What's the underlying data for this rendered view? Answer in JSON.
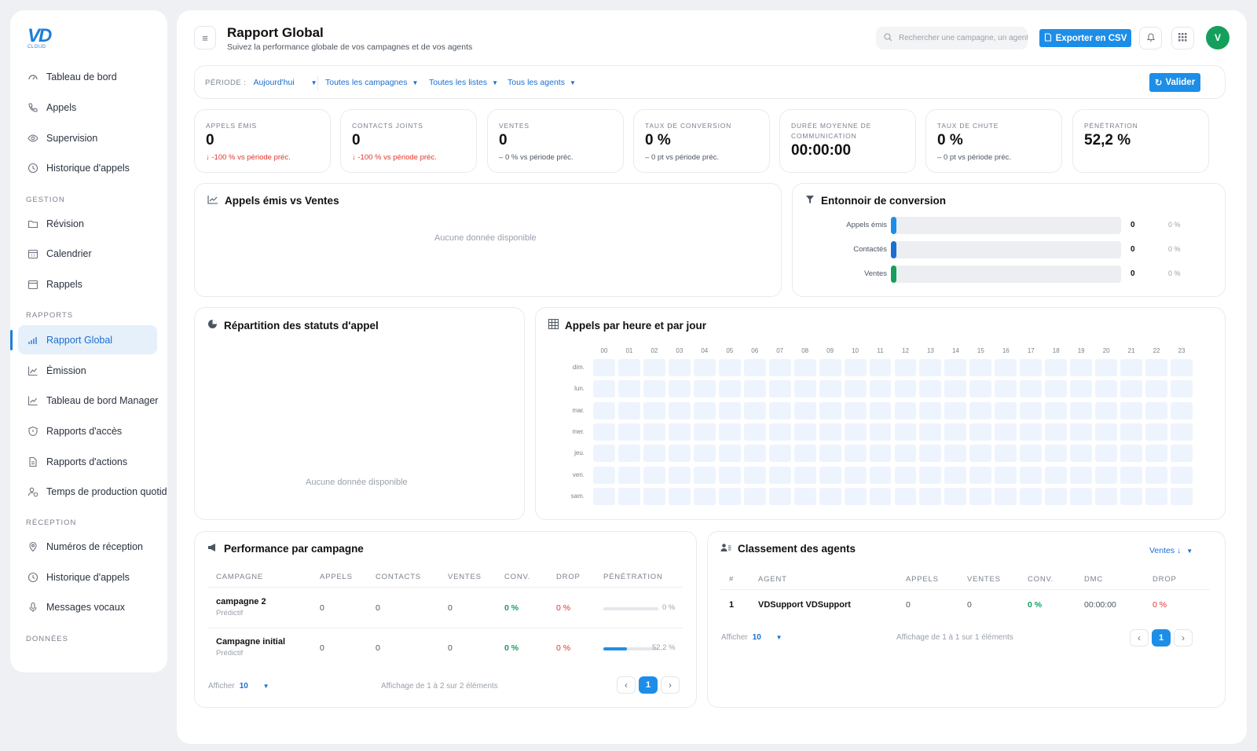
{
  "brand": {
    "mark": "VD",
    "sub": "CLOUD"
  },
  "sidebar": {
    "items_top": [
      {
        "label": "Tableau de bord",
        "icon": "dashboard-icon"
      },
      {
        "label": "Appels",
        "icon": "phone-icon"
      },
      {
        "label": "Supervision",
        "icon": "eye-icon"
      },
      {
        "label": "Historique d'appels",
        "icon": "history-icon"
      }
    ],
    "section_gestion": "GESTION",
    "items_gestion": [
      {
        "label": "Révision",
        "icon": "folder-icon"
      },
      {
        "label": "Calendrier",
        "icon": "calendar-icon"
      },
      {
        "label": "Rappels",
        "icon": "callback-icon"
      }
    ],
    "section_rapports": "RAPPORTS",
    "items_rapports": [
      {
        "label": "Rapport Global",
        "icon": "bar-chart-icon"
      },
      {
        "label": "Émission",
        "icon": "line-chart-icon"
      },
      {
        "label": "Tableau de bord Manager",
        "icon": "trend-icon"
      },
      {
        "label": "Rapports d'accès",
        "icon": "shield-icon"
      },
      {
        "label": "Rapports d'actions",
        "icon": "document-icon"
      },
      {
        "label": "Temps de production quotidien",
        "icon": "user-clock-icon"
      }
    ],
    "section_reception": "RÉCEPTION",
    "items_reception": [
      {
        "label": "Numéros de réception",
        "icon": "pin-icon"
      },
      {
        "label": "Historique d'appels",
        "icon": "history-icon"
      },
      {
        "label": "Messages vocaux",
        "icon": "mic-icon"
      }
    ],
    "section_donnees": "DONNÉES"
  },
  "header": {
    "title": "Rapport Global",
    "subtitle": "Suivez la performance globale de vos campagnes et de vos agents",
    "search_placeholder": "Rechercher une campagne, un agent...",
    "export_label": "Exporter en CSV",
    "avatar_initial": "V"
  },
  "filters": {
    "period_label": "PÉRIODE :",
    "period_value": "Aujourd'hui",
    "campaigns": "Toutes les campagnes",
    "lists": "Toutes les listes",
    "agents": "Tous les agents",
    "validate_label": "Valider"
  },
  "kpis": [
    {
      "label": "APPELS ÉMIS",
      "value": "0",
      "delta": "-100 % vs période préc.",
      "delta_arrow": "↓",
      "tone": "red"
    },
    {
      "label": "CONTACTS JOINTS",
      "value": "0",
      "delta": "-100 % vs période préc.",
      "delta_arrow": "↓",
      "tone": "red"
    },
    {
      "label": "VENTES",
      "value": "0",
      "delta": "0 % vs période préc.",
      "delta_arrow": "–",
      "tone": "gray"
    },
    {
      "label": "TAUX DE CONVERSION",
      "value": "0 %",
      "delta": "0 pt vs période préc.",
      "delta_arrow": "–",
      "tone": "gray"
    },
    {
      "label": "DURÉE MOYENNE DE COMMUNICATION",
      "value": "00:00:00",
      "delta": "",
      "delta_arrow": "",
      "tone": "gray"
    },
    {
      "label": "TAUX DE CHUTE",
      "value": "0 %",
      "delta": "0 pt vs période préc.",
      "delta_arrow": "–",
      "tone": "gray"
    },
    {
      "label": "PÉNÉTRATION",
      "value": "52,2 %",
      "delta": "",
      "delta_arrow": "",
      "tone": "gray"
    }
  ],
  "calls_vs_sales": {
    "title": "Appels émis vs Ventes",
    "empty": "Aucune donnée disponible"
  },
  "funnel": {
    "title": "Entonnoir de conversion",
    "rows": [
      {
        "label": "Appels émis",
        "value": "0",
        "pct": "0 %",
        "color": "#1d8ee8"
      },
      {
        "label": "Contactés",
        "value": "0",
        "pct": "0 %",
        "color": "#1a6fd0"
      },
      {
        "label": "Ventes",
        "value": "0",
        "pct": "0 %",
        "color": "#14a05c"
      }
    ]
  },
  "status_split": {
    "title": "Répartition des statuts d'appel",
    "empty": "Aucune donnée disponible"
  },
  "heatmap": {
    "title": "Appels par heure et par jour",
    "hours": [
      "00",
      "01",
      "02",
      "03",
      "04",
      "05",
      "06",
      "07",
      "08",
      "09",
      "10",
      "11",
      "12",
      "13",
      "14",
      "15",
      "16",
      "17",
      "18",
      "19",
      "20",
      "21",
      "22",
      "23"
    ],
    "days": [
      "dim.",
      "lun.",
      "mar.",
      "mer.",
      "jeu.",
      "ven.",
      "sam."
    ]
  },
  "campaign_perf": {
    "title": "Performance par campagne",
    "columns": [
      "CAMPAGNE",
      "APPELS",
      "CONTACTS",
      "VENTES",
      "CONV.",
      "DROP",
      "PÉNÉTRATION"
    ],
    "rows": [
      {
        "name": "campagne 2",
        "type": "Prédictif",
        "calls": "0",
        "contacts": "0",
        "sales": "0",
        "conv": "0 %",
        "drop": "0 %",
        "penetration": "0 %",
        "penetration_value": 0
      },
      {
        "name": "Campagne initial",
        "type": "Prédictif",
        "calls": "0",
        "contacts": "0",
        "sales": "0",
        "conv": "0 %",
        "drop": "0 %",
        "penetration": "52,2 %",
        "penetration_value": 52.2
      }
    ],
    "show_label": "Afficher",
    "show_value": "10",
    "summary": "Affichage de 1 à 2 sur 2 éléments",
    "page": "1"
  },
  "agents_rank": {
    "title": "Classement des agents",
    "sort_label": "Ventes ↓",
    "columns": [
      "#",
      "AGENT",
      "APPELS",
      "VENTES",
      "CONV.",
      "DMC",
      "DROP"
    ],
    "rows": [
      {
        "rank": "1",
        "agent": "VDSupport VDSupport",
        "calls": "0",
        "sales": "0",
        "conv": "0 %",
        "dmc": "00:00:00",
        "drop": "0 %"
      }
    ],
    "show_label": "Afficher",
    "show_value": "10",
    "summary": "Affichage de 1 à 1 sur 1 éléments",
    "page": "1"
  }
}
